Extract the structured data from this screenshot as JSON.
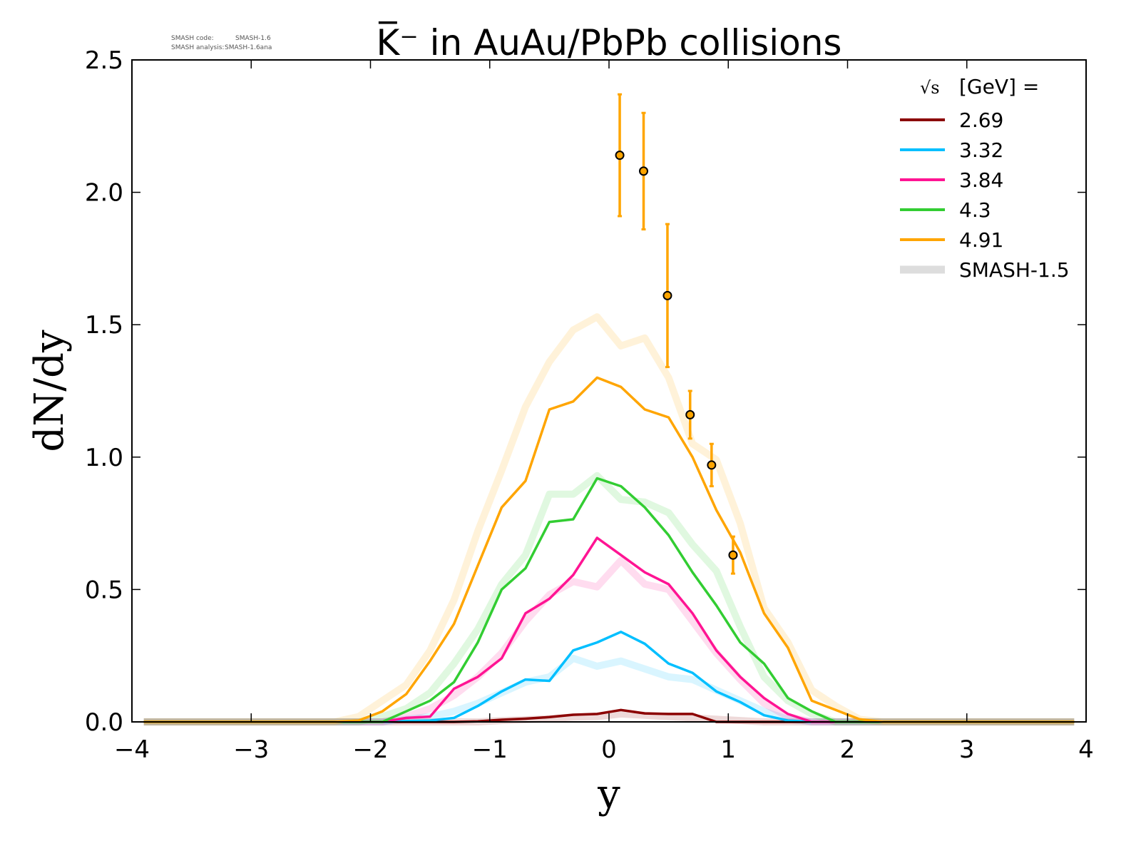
{
  "chart_data": {
    "type": "line",
    "title": "K̅⁻ in AuAu/PbPb collisions",
    "xlabel": "y",
    "ylabel": "dN/dy",
    "xlim": [
      -4,
      4
    ],
    "ylim": [
      0,
      2.5
    ],
    "x_ticks": [
      "−4",
      "−3",
      "−2",
      "−1",
      "0",
      "1",
      "2",
      "3",
      "4"
    ],
    "y_ticks": [
      "0.0",
      "0.5",
      "1.0",
      "1.5",
      "2.0",
      "2.5"
    ],
    "grid": false,
    "legend_position": "top-right",
    "legend_title_root": "√s",
    "legend_title_unit": "[GeV] =",
    "meta": {
      "code_label": "SMASH code:",
      "code_value": "SMASH-1.6",
      "analysis_label": "SMASH analysis:",
      "analysis_value": "SMASH-1.6ana"
    },
    "series": [
      {
        "name": "2.69",
        "color": "#8b0000",
        "x": [
          -3.9,
          -2.1,
          -1.9,
          -1.7,
          -1.5,
          -1.3,
          -1.1,
          -0.9,
          -0.7,
          -0.5,
          -0.3,
          -0.1,
          0.1,
          0.3,
          0.5,
          0.7,
          0.9,
          1.1,
          1.3,
          3.9
        ],
        "y": [
          0,
          0,
          0,
          0,
          0,
          0,
          0.002,
          0.008,
          0.012,
          0.018,
          0.027,
          0.03,
          0.045,
          0.032,
          0.03,
          0.03,
          0,
          0,
          0,
          0
        ]
      },
      {
        "name": "3.32",
        "color": "#00bfff",
        "x": [
          -3.9,
          -2.1,
          -1.9,
          -1.7,
          -1.5,
          -1.3,
          -1.1,
          -0.9,
          -0.7,
          -0.5,
          -0.3,
          -0.1,
          0.1,
          0.3,
          0.5,
          0.7,
          0.9,
          1.1,
          1.3,
          1.5,
          1.7,
          3.9
        ],
        "y": [
          0,
          0,
          0,
          0.003,
          0.005,
          0.015,
          0.06,
          0.115,
          0.16,
          0.155,
          0.27,
          0.3,
          0.34,
          0.295,
          0.22,
          0.185,
          0.115,
          0.075,
          0.025,
          0.005,
          0,
          0
        ]
      },
      {
        "name": "3.84",
        "color": "#ff1493",
        "x": [
          -3.9,
          -2.1,
          -1.9,
          -1.7,
          -1.5,
          -1.3,
          -1.1,
          -0.9,
          -0.7,
          -0.5,
          -0.3,
          -0.1,
          0.1,
          0.3,
          0.5,
          0.7,
          0.9,
          1.1,
          1.3,
          1.5,
          1.7,
          3.9
        ],
        "y": [
          0,
          0,
          0,
          0.015,
          0.02,
          0.125,
          0.17,
          0.24,
          0.41,
          0.465,
          0.555,
          0.695,
          0.63,
          0.565,
          0.52,
          0.41,
          0.27,
          0.17,
          0.09,
          0.03,
          0,
          0
        ]
      },
      {
        "name": "4.3",
        "color": "#32cd32",
        "x": [
          -3.9,
          -2.1,
          -1.9,
          -1.7,
          -1.5,
          -1.3,
          -1.1,
          -0.9,
          -0.7,
          -0.5,
          -0.3,
          -0.1,
          0.1,
          0.3,
          0.5,
          0.7,
          0.9,
          1.1,
          1.3,
          1.5,
          1.7,
          1.9,
          3.9
        ],
        "y": [
          0,
          0,
          0,
          0.04,
          0.08,
          0.15,
          0.3,
          0.5,
          0.58,
          0.755,
          0.765,
          0.92,
          0.89,
          0.81,
          0.705,
          0.565,
          0.44,
          0.3,
          0.22,
          0.09,
          0.04,
          0,
          0
        ]
      },
      {
        "name": "4.91",
        "color": "#ffa500",
        "x": [
          -3.9,
          -2.3,
          -2.1,
          -1.9,
          -1.7,
          -1.5,
          -1.3,
          -1.1,
          -0.9,
          -0.7,
          -0.5,
          -0.3,
          -0.1,
          0.1,
          0.3,
          0.5,
          0.7,
          0.9,
          1.1,
          1.3,
          1.5,
          1.7,
          1.9,
          2.1,
          2.3,
          3.9
        ],
        "y": [
          0,
          0,
          0.005,
          0.04,
          0.105,
          0.23,
          0.37,
          0.59,
          0.81,
          0.91,
          1.18,
          1.21,
          1.3,
          1.265,
          1.18,
          1.15,
          1.0,
          0.8,
          0.64,
          0.41,
          0.28,
          0.08,
          0.045,
          0.01,
          0,
          0
        ]
      }
    ],
    "reference_label": "SMASH-1.5",
    "reference_color": "#dddddd",
    "reference_series": [
      {
        "color": "#8b0000",
        "x": [
          -3.9,
          -1.1,
          -0.9,
          -0.7,
          -0.5,
          -0.3,
          -0.1,
          0.1,
          0.3,
          0.5,
          0.7,
          0.9,
          1.1,
          1.3,
          3.9
        ],
        "y": [
          0,
          0,
          0.005,
          0.008,
          0.012,
          0.018,
          0.02,
          0.03,
          0.025,
          0.02,
          0.015,
          0.01,
          0.005,
          0,
          0
        ]
      },
      {
        "color": "#00bfff",
        "x": [
          -3.9,
          -1.9,
          -1.7,
          -1.5,
          -1.3,
          -1.1,
          -0.9,
          -0.7,
          -0.5,
          -0.3,
          -0.1,
          0.1,
          0.3,
          0.5,
          0.7,
          0.9,
          1.1,
          1.3,
          1.5,
          1.7,
          3.9
        ],
        "y": [
          0,
          0,
          0.01,
          0.02,
          0.04,
          0.07,
          0.11,
          0.15,
          0.17,
          0.24,
          0.21,
          0.23,
          0.2,
          0.17,
          0.16,
          0.12,
          0.08,
          0.04,
          0.01,
          0,
          0
        ]
      },
      {
        "color": "#ff1493",
        "x": [
          -3.9,
          -1.9,
          -1.7,
          -1.5,
          -1.3,
          -1.1,
          -0.9,
          -0.7,
          -0.5,
          -0.3,
          -0.1,
          0.1,
          0.3,
          0.5,
          0.7,
          0.9,
          1.1,
          1.3,
          1.5,
          1.7,
          3.9
        ],
        "y": [
          0,
          0,
          0.02,
          0.05,
          0.1,
          0.17,
          0.26,
          0.38,
          0.48,
          0.53,
          0.51,
          0.61,
          0.52,
          0.5,
          0.38,
          0.26,
          0.16,
          0.07,
          0.02,
          0,
          0
        ]
      },
      {
        "color": "#32cd32",
        "x": [
          -3.9,
          -2.1,
          -1.9,
          -1.7,
          -1.5,
          -1.3,
          -1.1,
          -0.9,
          -0.7,
          -0.5,
          -0.3,
          -0.1,
          0.1,
          0.3,
          0.5,
          0.7,
          0.9,
          1.1,
          1.3,
          1.5,
          1.7,
          1.9,
          3.9
        ],
        "y": [
          0,
          0,
          0.02,
          0.05,
          0.11,
          0.22,
          0.35,
          0.52,
          0.63,
          0.86,
          0.86,
          0.93,
          0.84,
          0.83,
          0.79,
          0.67,
          0.57,
          0.36,
          0.17,
          0.08,
          0.03,
          0,
          0
        ]
      },
      {
        "color": "#ffa500",
        "x": [
          -3.9,
          -2.3,
          -2.1,
          -1.9,
          -1.7,
          -1.5,
          -1.3,
          -1.1,
          -0.9,
          -0.7,
          -0.5,
          -0.3,
          -0.1,
          0.1,
          0.3,
          0.5,
          0.7,
          0.9,
          1.1,
          1.3,
          1.5,
          1.7,
          1.9,
          2.1,
          2.3,
          3.9
        ],
        "y": [
          0,
          0,
          0.02,
          0.08,
          0.14,
          0.27,
          0.46,
          0.72,
          0.95,
          1.19,
          1.36,
          1.48,
          1.53,
          1.42,
          1.45,
          1.3,
          1.05,
          0.99,
          0.75,
          0.43,
          0.3,
          0.12,
          0.06,
          0.01,
          0,
          0
        ]
      }
    ],
    "experimental_points": {
      "color": "#ffa500",
      "x": [
        0.09,
        0.29,
        0.49,
        0.68,
        0.86,
        1.04
      ],
      "y": [
        2.14,
        2.08,
        1.61,
        1.16,
        0.97,
        0.63
      ],
      "yerr": [
        0.23,
        0.22,
        0.27,
        0.09,
        0.08,
        0.07
      ]
    }
  }
}
